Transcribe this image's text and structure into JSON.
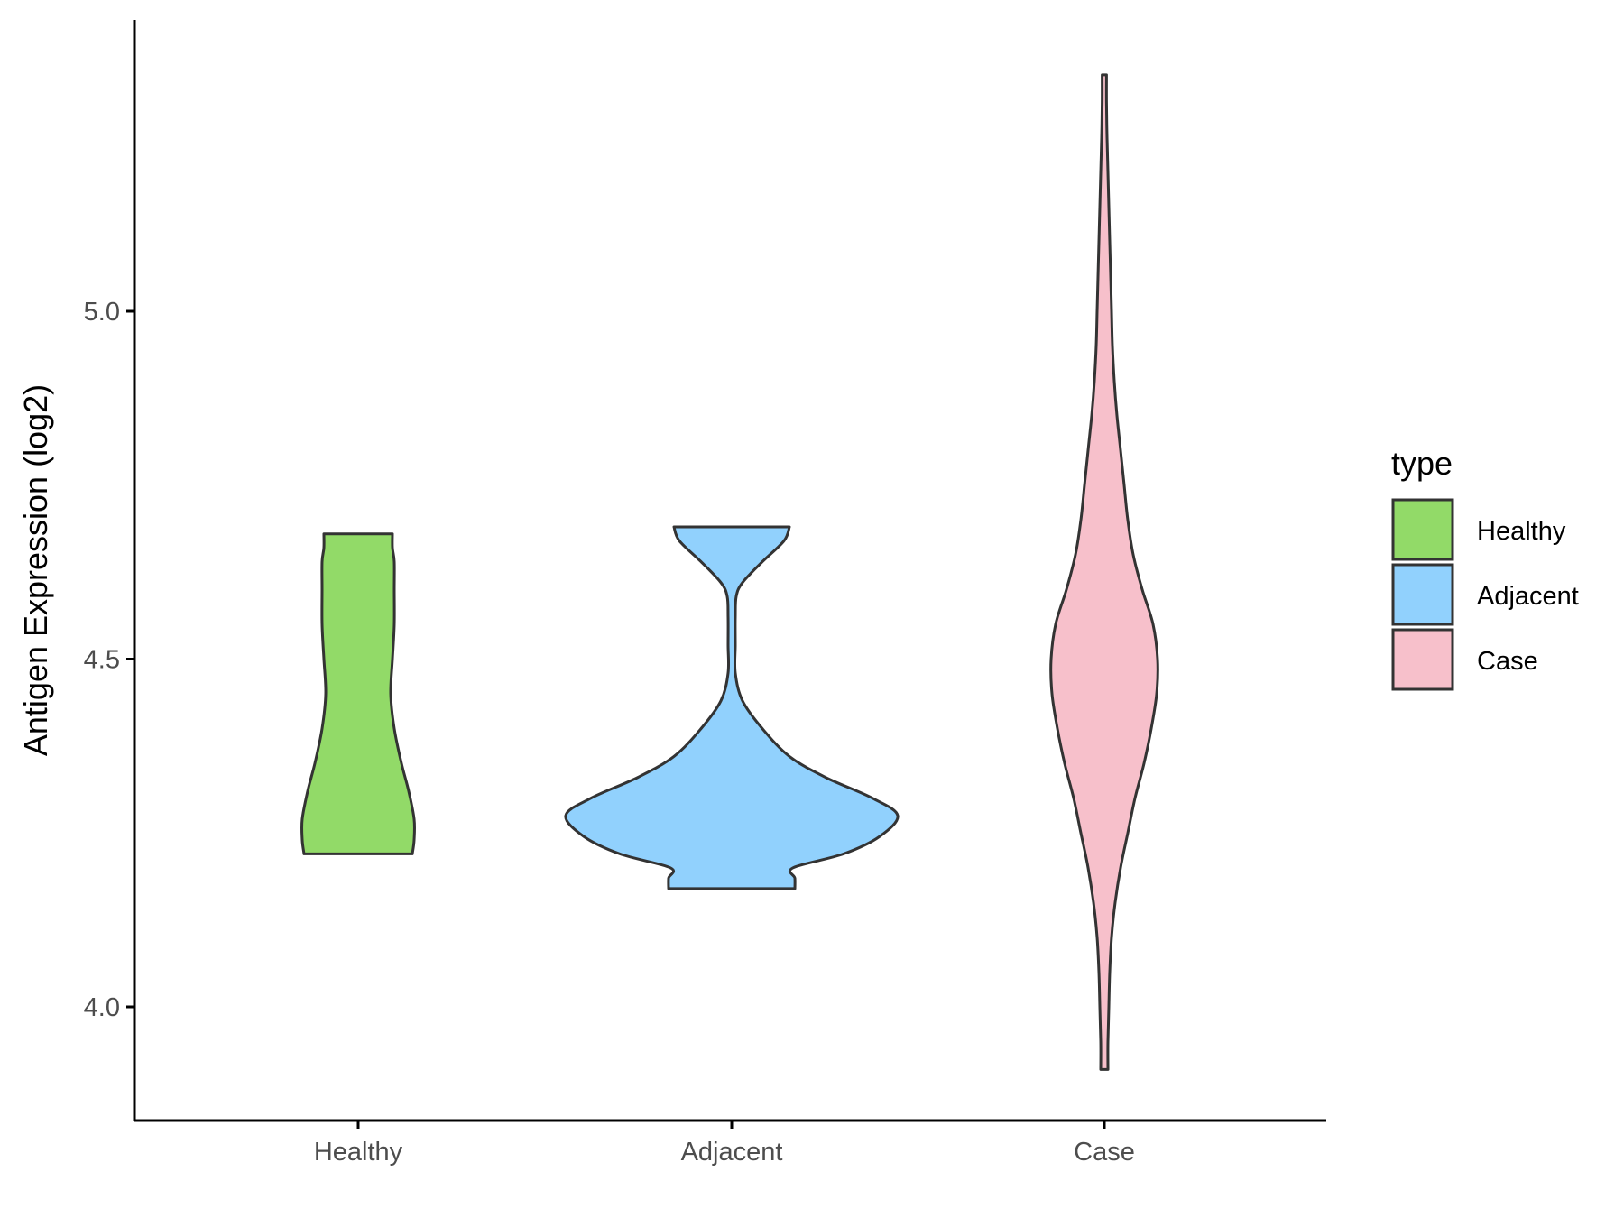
{
  "chart_data": {
    "type": "violin",
    "ylabel": "Antigen Expression (log2)",
    "xlabel": "",
    "ylim": [
      3.84,
      5.42
    ],
    "yticks": [
      "4.0",
      "4.5",
      "5.0"
    ],
    "categories": [
      "Healthy",
      "Adjacent",
      "Case"
    ],
    "legend": {
      "title": "type",
      "position": "right"
    },
    "series": [
      {
        "name": "Healthy",
        "color": "#92DA68",
        "min": 4.22,
        "max": 4.68,
        "density_profile": [
          [
            4.22,
            0.3
          ],
          [
            4.24,
            0.31
          ],
          [
            4.27,
            0.31
          ],
          [
            4.31,
            0.28
          ],
          [
            4.35,
            0.24
          ],
          [
            4.4,
            0.2
          ],
          [
            4.45,
            0.18
          ],
          [
            4.5,
            0.19
          ],
          [
            4.55,
            0.2
          ],
          [
            4.6,
            0.2
          ],
          [
            4.64,
            0.2
          ],
          [
            4.66,
            0.19
          ],
          [
            4.68,
            0.19
          ]
        ]
      },
      {
        "name": "Adjacent",
        "color": "#91D1FD",
        "min": 4.17,
        "max": 4.69,
        "density_profile": [
          [
            4.17,
            0.35
          ],
          [
            4.185,
            0.35
          ],
          [
            4.2,
            0.34
          ],
          [
            4.22,
            0.62
          ],
          [
            4.245,
            0.82
          ],
          [
            4.275,
            0.92
          ],
          [
            4.3,
            0.78
          ],
          [
            4.33,
            0.52
          ],
          [
            4.36,
            0.32
          ],
          [
            4.4,
            0.17
          ],
          [
            4.44,
            0.06
          ],
          [
            4.48,
            0.02
          ],
          [
            4.52,
            0.02
          ],
          [
            4.56,
            0.02
          ],
          [
            4.59,
            0.025
          ],
          [
            4.61,
            0.06
          ],
          [
            4.64,
            0.17
          ],
          [
            4.67,
            0.29
          ],
          [
            4.69,
            0.32
          ]
        ]
      },
      {
        "name": "Case",
        "color": "#F7C0CB",
        "min": 3.91,
        "max": 5.34,
        "density_profile": [
          [
            3.91,
            0.02
          ],
          [
            3.95,
            0.02
          ],
          [
            4.0,
            0.025
          ],
          [
            4.05,
            0.03
          ],
          [
            4.1,
            0.04
          ],
          [
            4.15,
            0.06
          ],
          [
            4.2,
            0.09
          ],
          [
            4.25,
            0.13
          ],
          [
            4.3,
            0.17
          ],
          [
            4.35,
            0.22
          ],
          [
            4.4,
            0.26
          ],
          [
            4.45,
            0.29
          ],
          [
            4.5,
            0.295
          ],
          [
            4.55,
            0.27
          ],
          [
            4.6,
            0.21
          ],
          [
            4.65,
            0.16
          ],
          [
            4.7,
            0.13
          ],
          [
            4.75,
            0.11
          ],
          [
            4.8,
            0.09
          ],
          [
            4.85,
            0.07
          ],
          [
            4.9,
            0.055
          ],
          [
            4.95,
            0.045
          ],
          [
            5.0,
            0.04
          ],
          [
            5.05,
            0.035
          ],
          [
            5.1,
            0.03
          ],
          [
            5.15,
            0.025
          ],
          [
            5.2,
            0.02
          ],
          [
            5.25,
            0.015
          ],
          [
            5.3,
            0.012
          ],
          [
            5.34,
            0.012
          ]
        ]
      }
    ]
  }
}
